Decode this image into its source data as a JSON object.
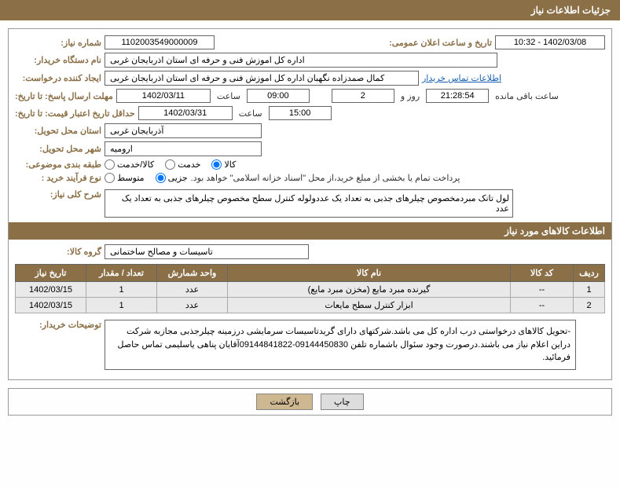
{
  "header": {
    "title": "جزئیات اطلاعات نیاز"
  },
  "fields": {
    "need_no_label": "شماره نیاز:",
    "need_no": "1102003549000009",
    "announce_label": "تاریخ و ساعت اعلان عمومی:",
    "announce_val": "1402/03/08 - 10:32",
    "buyer_label": "نام دستگاه خریدار:",
    "buyer_val": "اداره کل اموزش فنی و حرفه ای استان اذربایجان غربی",
    "creator_label": "ایجاد کننده درخواست:",
    "creator_val": "کمال صمدزاده نگهبان اداره کل اموزش فنی و حرفه ای استان اذربایجان غربی",
    "contact_link": "اطلاعات تماس خریدار",
    "deadline_label": "مهلت ارسال پاسخ: تا تاریخ:",
    "deadline_date": "1402/03/11",
    "time_label": "ساعت",
    "deadline_time": "09:00",
    "days": "2",
    "days_label": "روز و",
    "countdown": "21:28:54",
    "remaining_label": "ساعت باقی مانده",
    "validity_label": "حداقل تاریخ اعتبار قیمت: تا تاریخ:",
    "validity_date": "1402/03/31",
    "validity_time": "15:00",
    "province_label": "استان محل تحویل:",
    "province_val": "آذربایجان غربی",
    "city_label": "شهر محل تحویل:",
    "city_val": "ارومیه",
    "category_label": "طبقه بندی موضوعی:",
    "cat_opts": [
      "کالا",
      "خدمت",
      "کالا/خدمت"
    ],
    "process_label": "نوع فرآیند خرید :",
    "proc_opts": [
      "جزیی",
      "متوسط"
    ],
    "payment_note": "پرداخت تمام یا بخشی از مبلغ خرید،از محل \"اسناد خزانه اسلامی\" خواهد بود.",
    "summary_label": "شرح کلی نیاز:",
    "summary_val": "لول تانک مبردمخصوص چیلرهای جذبی به تعداد یک عددولوله کنترل سطح مخصوص چیلرهای جذبی به تعداد یک عدد",
    "goods_section": "اطلاعات کالاهای مورد نیاز",
    "group_label": "گروه کالا:",
    "group_val": "تاسیسات و مصالح ساختمانی",
    "buyer_notes_label": "توضیحات خریدار:",
    "buyer_notes_val": "-تحویل کالاهای درخواستی درب اداره کل می باشد.شرکتهای دارای گریدتاسیسات سرمایشی درزمینه چیلرجذبی مجازبه شرکت دراین اعلام نیاز می باشند.درصورت وجود سئوال باشماره تلفن 09144450830-09144841822آقایان پناهی یاسلیمی تماس حاصل فرمائید."
  },
  "table": {
    "headers": [
      "ردیف",
      "کد کالا",
      "نام کالا",
      "واحد شمارش",
      "تعداد / مقدار",
      "تاریخ نیاز"
    ],
    "rows": [
      [
        "1",
        "--",
        "گیرنده مبرد مایع (مخزن مبرد مایع)",
        "عدد",
        "1",
        "1402/03/15"
      ],
      [
        "2",
        "--",
        "ابزار کنترل سطح مایعات",
        "عدد",
        "1",
        "1402/03/15"
      ]
    ]
  },
  "buttons": {
    "print": "چاپ",
    "back": "بازگشت"
  },
  "colors": {
    "brand": "#8a6f47",
    "row": "#e9e9e9"
  }
}
